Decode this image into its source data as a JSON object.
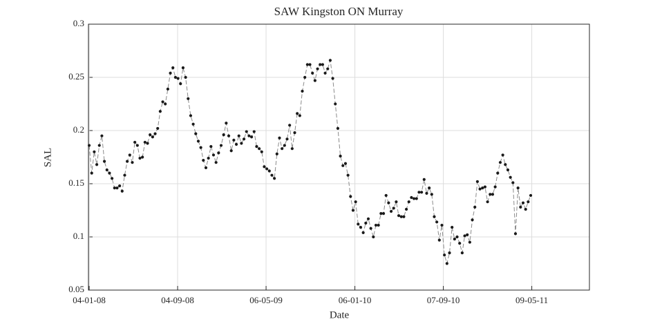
{
  "chart_data": {
    "type": "line",
    "title": "SAW Kingston ON Murray",
    "xlabel": "Date",
    "ylabel": "SAL",
    "color": "#1a1a1a",
    "line_color": "#8a8a8a",
    "grid": true,
    "xlim": [
      "2008-01-02",
      "2011-10-15"
    ],
    "xticks": [
      {
        "value": "2008-01-04",
        "label": "04-01-08"
      },
      {
        "value": "2008-09-04",
        "label": "04-09-08"
      },
      {
        "value": "2009-05-06",
        "label": "06-05-09"
      },
      {
        "value": "2010-01-06",
        "label": "06-01-10"
      },
      {
        "value": "2010-09-07",
        "label": "07-09-10"
      },
      {
        "value": "2011-05-09",
        "label": "09-05-11"
      }
    ],
    "ylim": [
      0.05,
      0.3
    ],
    "yticks": [
      0.05,
      0.1,
      0.15,
      0.2,
      0.25,
      0.3
    ],
    "x": [
      "2008-01-04",
      "2008-01-11",
      "2008-01-18",
      "2008-01-25",
      "2008-02-01",
      "2008-02-08",
      "2008-02-15",
      "2008-02-22",
      "2008-02-29",
      "2008-03-07",
      "2008-03-14",
      "2008-03-21",
      "2008-03-28",
      "2008-04-04",
      "2008-04-11",
      "2008-04-18",
      "2008-04-25",
      "2008-05-02",
      "2008-05-09",
      "2008-05-16",
      "2008-05-23",
      "2008-05-30",
      "2008-06-06",
      "2008-06-13",
      "2008-06-20",
      "2008-06-27",
      "2008-07-04",
      "2008-07-11",
      "2008-07-18",
      "2008-07-25",
      "2008-08-01",
      "2008-08-08",
      "2008-08-15",
      "2008-08-22",
      "2008-08-29",
      "2008-09-05",
      "2008-09-12",
      "2008-09-19",
      "2008-09-26",
      "2008-10-03",
      "2008-10-10",
      "2008-10-17",
      "2008-10-24",
      "2008-10-31",
      "2008-11-07",
      "2008-11-14",
      "2008-11-21",
      "2008-11-28",
      "2008-12-05",
      "2008-12-12",
      "2008-12-19",
      "2008-12-26",
      "2009-01-02",
      "2009-01-09",
      "2009-01-16",
      "2009-01-23",
      "2009-01-30",
      "2009-02-06",
      "2009-02-13",
      "2009-02-20",
      "2009-02-27",
      "2009-03-06",
      "2009-03-13",
      "2009-03-20",
      "2009-03-27",
      "2009-04-03",
      "2009-04-10",
      "2009-04-17",
      "2009-04-24",
      "2009-05-01",
      "2009-05-08",
      "2009-05-15",
      "2009-05-22",
      "2009-05-29",
      "2009-06-05",
      "2009-06-12",
      "2009-06-19",
      "2009-06-26",
      "2009-07-03",
      "2009-07-10",
      "2009-07-17",
      "2009-07-24",
      "2009-07-31",
      "2009-08-07",
      "2009-08-14",
      "2009-08-21",
      "2009-08-28",
      "2009-09-04",
      "2009-09-11",
      "2009-09-18",
      "2009-09-25",
      "2009-10-02",
      "2009-10-09",
      "2009-10-16",
      "2009-10-23",
      "2009-10-30",
      "2009-11-06",
      "2009-11-13",
      "2009-11-20",
      "2009-11-27",
      "2009-12-04",
      "2009-12-11",
      "2009-12-18",
      "2009-12-25",
      "2010-01-01",
      "2010-01-08",
      "2010-01-15",
      "2010-01-22",
      "2010-01-29",
      "2010-02-05",
      "2010-02-12",
      "2010-02-19",
      "2010-02-26",
      "2010-03-05",
      "2010-03-12",
      "2010-03-19",
      "2010-03-26",
      "2010-04-02",
      "2010-04-09",
      "2010-04-16",
      "2010-04-23",
      "2010-04-30",
      "2010-05-07",
      "2010-05-14",
      "2010-05-21",
      "2010-05-28",
      "2010-06-04",
      "2010-06-11",
      "2010-06-18",
      "2010-06-25",
      "2010-07-02",
      "2010-07-09",
      "2010-07-16",
      "2010-07-23",
      "2010-07-30",
      "2010-08-06",
      "2010-08-13",
      "2010-08-20",
      "2010-08-27",
      "2010-09-03",
      "2010-09-10",
      "2010-09-17",
      "2010-09-24",
      "2010-10-01",
      "2010-10-08",
      "2010-10-15",
      "2010-10-22",
      "2010-10-29",
      "2010-11-05",
      "2010-11-12",
      "2010-11-19",
      "2010-11-26",
      "2010-12-03",
      "2010-12-10",
      "2010-12-17",
      "2010-12-24",
      "2010-12-31",
      "2011-01-07",
      "2011-01-14",
      "2011-01-21",
      "2011-01-28",
      "2011-02-04",
      "2011-02-11",
      "2011-02-18",
      "2011-02-25",
      "2011-03-04",
      "2011-03-11",
      "2011-03-18",
      "2011-03-25",
      "2011-04-01",
      "2011-04-08",
      "2011-04-15",
      "2011-04-22",
      "2011-04-29",
      "2011-05-06"
    ],
    "values": [
      0.186,
      0.16,
      0.18,
      0.168,
      0.186,
      0.195,
      0.171,
      0.163,
      0.16,
      0.155,
      0.146,
      0.146,
      0.148,
      0.143,
      0.158,
      0.171,
      0.177,
      0.17,
      0.189,
      0.186,
      0.174,
      0.175,
      0.189,
      0.188,
      0.196,
      0.194,
      0.197,
      0.202,
      0.218,
      0.227,
      0.225,
      0.239,
      0.254,
      0.259,
      0.25,
      0.249,
      0.244,
      0.259,
      0.25,
      0.23,
      0.214,
      0.206,
      0.197,
      0.19,
      0.184,
      0.172,
      0.165,
      0.174,
      0.185,
      0.177,
      0.17,
      0.179,
      0.186,
      0.196,
      0.207,
      0.195,
      0.181,
      0.191,
      0.187,
      0.195,
      0.188,
      0.192,
      0.199,
      0.195,
      0.194,
      0.199,
      0.185,
      0.183,
      0.18,
      0.166,
      0.164,
      0.162,
      0.158,
      0.155,
      0.178,
      0.193,
      0.183,
      0.186,
      0.192,
      0.205,
      0.183,
      0.198,
      0.216,
      0.214,
      0.237,
      0.25,
      0.262,
      0.262,
      0.254,
      0.247,
      0.258,
      0.262,
      0.262,
      0.254,
      0.258,
      0.266,
      0.249,
      0.225,
      0.202,
      0.176,
      0.167,
      0.169,
      0.158,
      0.138,
      0.125,
      0.133,
      0.112,
      0.109,
      0.104,
      0.113,
      0.117,
      0.108,
      0.1,
      0.111,
      0.111,
      0.122,
      0.122,
      0.139,
      0.132,
      0.124,
      0.127,
      0.133,
      0.12,
      0.119,
      0.119,
      0.126,
      0.133,
      0.137,
      0.136,
      0.136,
      0.142,
      0.142,
      0.154,
      0.141,
      0.146,
      0.14,
      0.119,
      0.114,
      0.097,
      0.111,
      0.083,
      0.075,
      0.085,
      0.109,
      0.098,
      0.1,
      0.094,
      0.085,
      0.101,
      0.102,
      0.095,
      0.116,
      0.128,
      0.152,
      0.145,
      0.146,
      0.147,
      0.133,
      0.14,
      0.14,
      0.147,
      0.16,
      0.17,
      0.177,
      0.168,
      0.163,
      0.156,
      0.151,
      0.103,
      0.146,
      0.128,
      0.132,
      0.126,
      0.133,
      0.139
    ]
  }
}
